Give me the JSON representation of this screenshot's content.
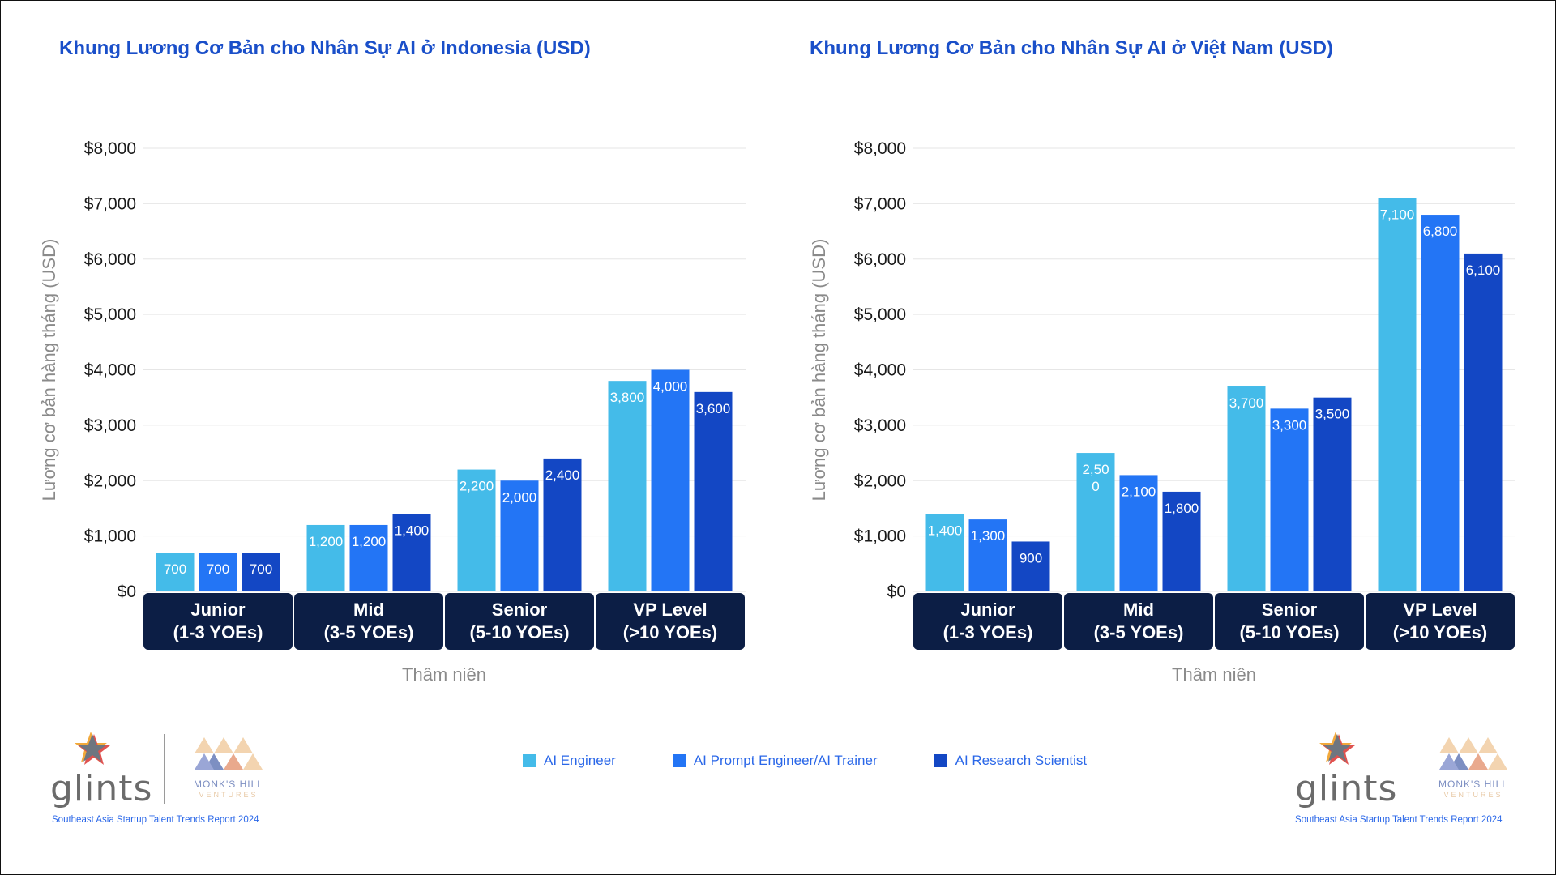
{
  "colors": {
    "ai_engineer": "#44bbe9",
    "ai_prompt_engineer": "#2375f5",
    "ai_research_scientist": "#1347c4",
    "category_band": "#0c1e45",
    "title": "#1a4fc9",
    "axis_text": "#1a1a1a",
    "axis_label": "#8a8a8a"
  },
  "legend": {
    "items": [
      {
        "label": "AI Engineer",
        "color": "#44bbe9"
      },
      {
        "label": "AI Prompt Engineer/AI Trainer",
        "color": "#2375f5"
      },
      {
        "label": "AI Research Scientist",
        "color": "#1347c4"
      }
    ]
  },
  "chart_data": [
    {
      "type": "bar",
      "title": "Khung Lương Cơ Bản cho Nhân Sự AI ở Indonesia (USD)",
      "xlabel": "Thâm niên",
      "ylabel": "Lương cơ bản hàng tháng (USD)",
      "ylim": [
        0,
        8000
      ],
      "yticks": [
        0,
        1000,
        2000,
        3000,
        4000,
        5000,
        6000,
        7000,
        8000
      ],
      "ytick_labels": [
        "$0",
        "$1,000",
        "$2,000",
        "$3,000",
        "$4,000",
        "$5,000",
        "$6,000",
        "$7,000",
        "$8,000"
      ],
      "categories": [
        {
          "line1": "Junior",
          "line2": "(1-3 YOEs)"
        },
        {
          "line1": "Mid",
          "line2": "(3-5 YOEs)"
        },
        {
          "line1": "Senior",
          "line2": "(5-10 YOEs)"
        },
        {
          "line1": "VP Level",
          "line2": "(>10 YOEs)"
        }
      ],
      "series": [
        {
          "name": "AI Engineer",
          "values": [
            700,
            1200,
            2200,
            3800
          ],
          "labels": [
            "700",
            "1,200",
            "2,200",
            "3,800"
          ]
        },
        {
          "name": "AI Prompt Engineer/AI Trainer",
          "values": [
            700,
            1200,
            2000,
            4000
          ],
          "labels": [
            "700",
            "1,200",
            "2,000",
            "4,000"
          ]
        },
        {
          "name": "AI Research Scientist",
          "values": [
            700,
            1400,
            2400,
            3600
          ],
          "labels": [
            "700",
            "1,400",
            "2,400",
            "3,600"
          ]
        }
      ]
    },
    {
      "type": "bar",
      "title": "Khung Lương Cơ Bản cho Nhân Sự AI ở Việt Nam (USD)",
      "xlabel": "Thâm niên",
      "ylabel": "Lương cơ bản hàng tháng (USD)",
      "ylim": [
        0,
        8000
      ],
      "yticks": [
        0,
        1000,
        2000,
        3000,
        4000,
        5000,
        6000,
        7000,
        8000
      ],
      "ytick_labels": [
        "$0",
        "$1,000",
        "$2,000",
        "$3,000",
        "$4,000",
        "$5,000",
        "$6,000",
        "$7,000",
        "$8,000"
      ],
      "categories": [
        {
          "line1": "Junior",
          "line2": "(1-3 YOEs)"
        },
        {
          "line1": "Mid",
          "line2": "(3-5 YOEs)"
        },
        {
          "line1": "Senior",
          "line2": "(5-10 YOEs)"
        },
        {
          "line1": "VP Level",
          "line2": "(>10 YOEs)"
        }
      ],
      "series": [
        {
          "name": "AI Engineer",
          "values": [
            1400,
            2500,
            3700,
            7100
          ],
          "labels": [
            "1,400",
            "2,50\n0",
            "3,700",
            "7,100"
          ]
        },
        {
          "name": "AI Prompt Engineer/AI Trainer",
          "values": [
            1300,
            2100,
            3300,
            6800
          ],
          "labels": [
            "1,300",
            "2,100",
            "3,300",
            "6,800"
          ]
        },
        {
          "name": "AI Research Scientist",
          "values": [
            900,
            1800,
            3500,
            6100
          ],
          "labels": [
            "900",
            "1,800",
            "3,500",
            "6,100"
          ]
        }
      ]
    }
  ],
  "branding": {
    "glints": "glints",
    "monks_hill": "MONK'S HILL",
    "ventures": "VENTURES",
    "report": "Southeast Asia Startup Talent Trends Report 2024"
  }
}
